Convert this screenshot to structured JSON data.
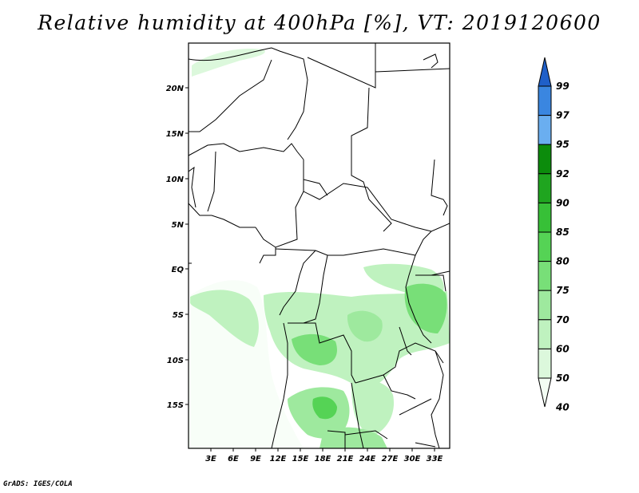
{
  "title": "Relative humidity at 400hPa [%], VT: 2019120600",
  "credit": "GrADS: IGES/COLA",
  "map": {
    "lat_labels": [
      "20N",
      "15N",
      "10N",
      "5N",
      "EQ",
      "5S",
      "10S",
      "15S"
    ],
    "lon_labels": [
      "3E",
      "6E",
      "9E",
      "12E",
      "15E",
      "18E",
      "21E",
      "24E",
      "27E",
      "30E",
      "33E"
    ]
  },
  "colorbar": {
    "levels": [
      "99",
      "97",
      "95",
      "92",
      "90",
      "85",
      "80",
      "75",
      "70",
      "60",
      "50",
      "40"
    ],
    "colors": [
      "#1f5fc8",
      "#3a86e0",
      "#6aaef0",
      "#0c8c0c",
      "#1fa51f",
      "#37c037",
      "#55d355",
      "#78df78",
      "#9ee99e",
      "#bff2bf",
      "#dcf8dc",
      "#f3fdf3"
    ]
  }
}
